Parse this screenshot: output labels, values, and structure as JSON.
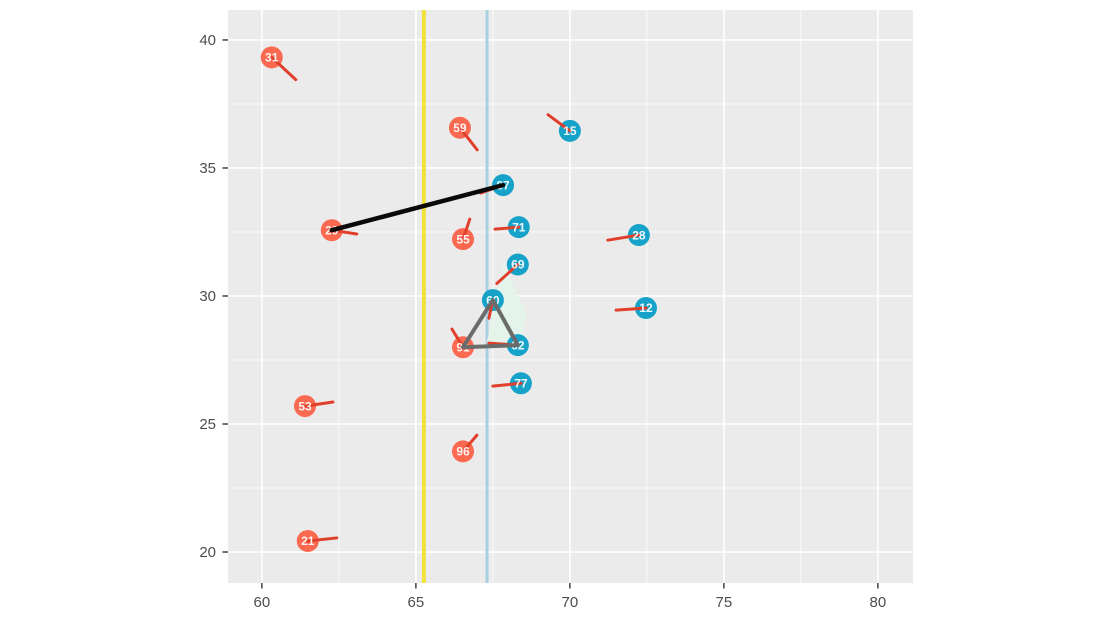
{
  "chart_data": {
    "type": "scatter",
    "title": "",
    "xlabel": "",
    "ylabel": "",
    "xlim": [
      58.9,
      81.14
    ],
    "ylim": [
      18.79,
      41.17
    ],
    "x_ticks": [
      60,
      65,
      70,
      75,
      80
    ],
    "x_tick_labels": [
      "60",
      "65",
      "70",
      "75",
      "80"
    ],
    "y_ticks": [
      20,
      25,
      30,
      35,
      40
    ],
    "y_tick_labels": [
      "20",
      "25",
      "30",
      "35",
      "40"
    ],
    "x_minor": [
      62.5,
      67.5,
      72.5,
      77.5
    ],
    "y_minor": [
      22.5,
      27.5,
      32.5,
      37.5
    ],
    "grid": "ggplot-style: white major+minor gridlines on gray panel",
    "legend": "none",
    "style": {
      "panel_bg": "#EBEBEB",
      "grid_major": "#FFFFFF",
      "grid_minor": "#FFFFFF",
      "tick_color": "#333333",
      "tick_label_color": "#4D4D4D",
      "red_team_color": "#FA6950",
      "teal_team_color": "#17A3C9",
      "arrow_color": "#E0402B",
      "point_label_color": "#FFFFFF",
      "black_segment_color": "#0A0A0A",
      "triangle_color": "#6B6B6B",
      "highlight_fill": "#E3F6EA"
    },
    "vlines": [
      {
        "name": "yellow-line",
        "x": 65.26,
        "color": "#F2E23E",
        "width": 4
      },
      {
        "name": "blue-line",
        "x": 67.31,
        "color": "#A8D0E2",
        "width": 3
      }
    ],
    "points": [
      {
        "label": "31",
        "team": "red",
        "x": 60.32,
        "y": 39.32,
        "ax": 61.1,
        "ay": 38.45
      },
      {
        "label": "59",
        "team": "red",
        "x": 66.43,
        "y": 36.57,
        "ax": 66.99,
        "ay": 35.71
      },
      {
        "label": "29",
        "team": "red",
        "x": 62.27,
        "y": 32.57,
        "ax": 63.08,
        "ay": 32.42
      },
      {
        "label": "55",
        "team": "red",
        "x": 66.53,
        "y": 32.22,
        "ax": 66.75,
        "ay": 33.0
      },
      {
        "label": "91",
        "team": "red",
        "x": 66.53,
        "y": 28.0,
        "ax": 66.17,
        "ay": 28.71
      },
      {
        "label": "53",
        "team": "red",
        "x": 61.4,
        "y": 25.7,
        "ax": 62.31,
        "ay": 25.86
      },
      {
        "label": "96",
        "team": "red",
        "x": 66.53,
        "y": 23.93,
        "ax": 66.98,
        "ay": 24.56
      },
      {
        "label": "21",
        "team": "red",
        "x": 61.49,
        "y": 20.43,
        "ax": 62.43,
        "ay": 20.55
      },
      {
        "label": "15",
        "team": "teal",
        "x": 70.0,
        "y": 36.45,
        "ax": 69.29,
        "ay": 37.08
      },
      {
        "label": "87",
        "team": "teal",
        "x": 67.83,
        "y": 34.33,
        "ax": 67.1,
        "ay": 34.02
      },
      {
        "label": "71",
        "team": "teal",
        "x": 68.34,
        "y": 32.69,
        "ax": 67.57,
        "ay": 32.61
      },
      {
        "label": "28",
        "team": "teal",
        "x": 72.24,
        "y": 32.38,
        "ax": 71.23,
        "ay": 32.18
      },
      {
        "label": "69",
        "team": "teal",
        "x": 68.31,
        "y": 31.23,
        "ax": 67.63,
        "ay": 30.49
      },
      {
        "label": "12",
        "team": "teal",
        "x": 72.47,
        "y": 29.53,
        "ax": 71.5,
        "ay": 29.45
      },
      {
        "label": "60",
        "team": "teal",
        "x": 67.5,
        "y": 29.84,
        "ax": 67.37,
        "ay": 29.13
      },
      {
        "label": "62",
        "team": "teal",
        "x": 68.31,
        "y": 28.08,
        "ax": 67.37,
        "ay": 28.16
      },
      {
        "label": "77",
        "team": "teal",
        "x": 68.41,
        "y": 26.59,
        "ax": 67.5,
        "ay": 26.48
      }
    ],
    "segments": [
      {
        "name": "black-connection-line",
        "x1": 62.27,
        "y1": 32.57,
        "x2": 67.83,
        "y2": 34.33,
        "color": "#0A0A0A",
        "width": 4.5,
        "connects": [
          "29",
          "87"
        ]
      }
    ],
    "triangle": {
      "name": "gray-triangle",
      "vertices": [
        [
          67.5,
          29.84
        ],
        [
          66.53,
          28.0
        ],
        [
          68.31,
          28.08
        ]
      ],
      "connects": [
        "60",
        "91",
        "62"
      ],
      "color": "#6B6B6B",
      "width": 4
    },
    "highlight_polygon": {
      "name": "mint-highlight-region",
      "vertices": [
        [
          67.85,
          31.25
        ],
        [
          68.6,
          29.3
        ],
        [
          68.35,
          27.9
        ],
        [
          67.3,
          28.2
        ]
      ],
      "fill": "#E3F6EA",
      "opacity": 0.85
    },
    "marker_radius_px": 11,
    "point_label_font_px": 12,
    "axis_font_px": 15
  }
}
